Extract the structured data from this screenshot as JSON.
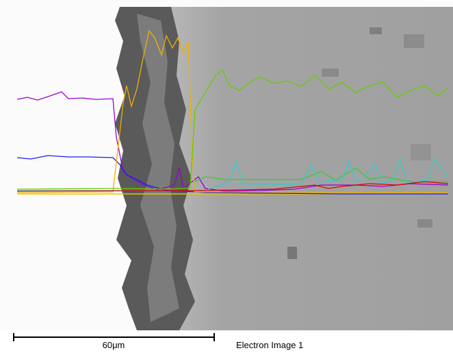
{
  "scale_bar": {
    "label": "60μm"
  },
  "caption": "Electron Image 1"
}
